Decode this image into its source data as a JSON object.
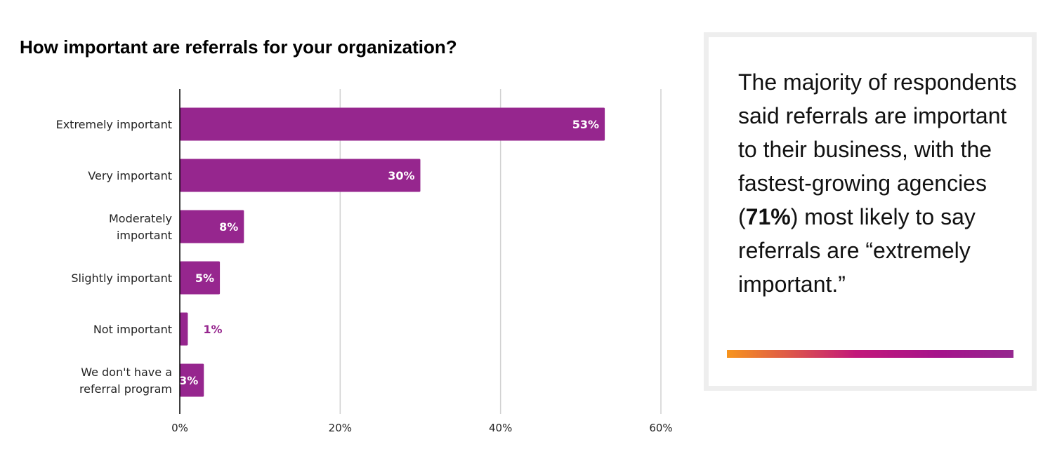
{
  "chart_data": {
    "type": "bar",
    "orientation": "horizontal",
    "title": "How important are referrals for your organization?",
    "categories": [
      [
        "Extremely important"
      ],
      [
        "Very important"
      ],
      [
        "Moderately",
        "important"
      ],
      [
        "Slightly important"
      ],
      [
        "Not important"
      ],
      [
        "We don't have a",
        "referral program"
      ]
    ],
    "values": [
      53,
      30,
      8,
      5,
      1,
      3
    ],
    "data_labels": [
      "53%",
      "30%",
      "8%",
      "5%",
      "1%",
      "3%"
    ],
    "xlim": [
      0,
      60
    ],
    "x_ticks": [
      "0%",
      "20%",
      "40%",
      "60%"
    ],
    "x_tick_values": [
      0,
      20,
      40,
      60
    ],
    "grid": "vertical",
    "bar_color": "#96268e",
    "xlabel": "",
    "ylabel": ""
  },
  "callout": {
    "text_before": "The majority of respondents said referrals are important to their business, with the fastest-growing agencies (",
    "highlight": "71%",
    "text_after": ") most likely to say referrals are “extremely important.”"
  }
}
